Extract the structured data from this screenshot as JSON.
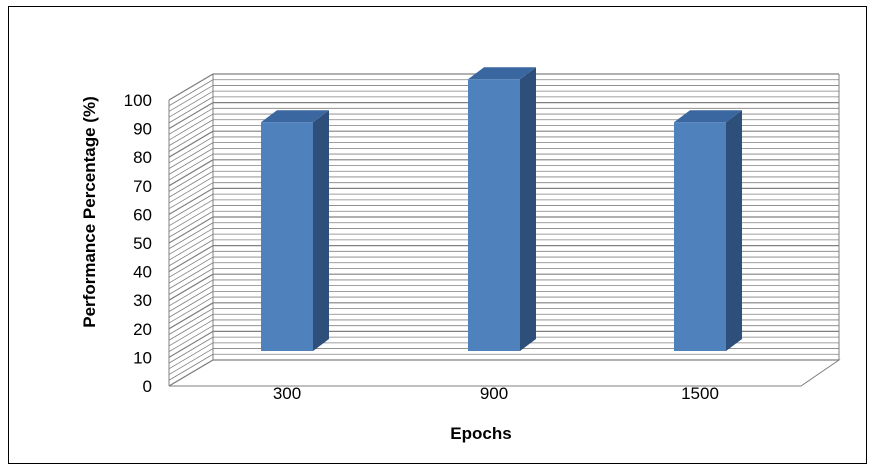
{
  "chart_data": {
    "type": "bar",
    "title": "",
    "xlabel": "Epochs",
    "ylabel": "Performance Percentage (%)",
    "categories": [
      "300",
      "900",
      "1500"
    ],
    "values": [
      80,
      95,
      80
    ],
    "ylim": [
      0,
      100
    ],
    "yticks": [
      "0",
      "10",
      "20",
      "30",
      "40",
      "50",
      "60",
      "70",
      "80",
      "90",
      "100"
    ],
    "grid": true,
    "legend": "none",
    "style": "3d-column",
    "colors": {
      "bar_front": "#4F81BD",
      "bar_side": "#2E4F7A",
      "bar_top": "#3A67A0",
      "gridline": "#808080",
      "wall_edge": "#808080"
    }
  }
}
